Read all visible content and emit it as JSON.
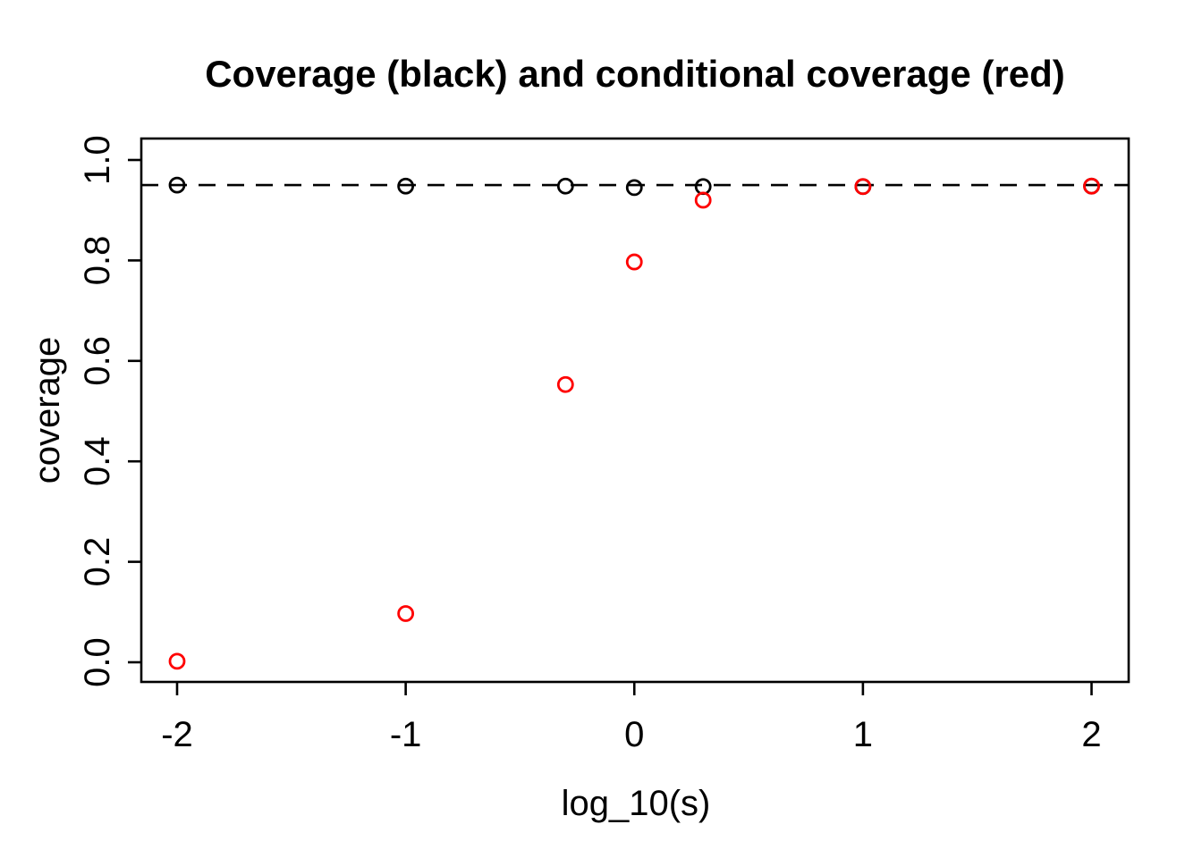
{
  "figure": {
    "background": "#FFFFFF",
    "axis_color": "#000000"
  },
  "chart_data": {
    "type": "scatter",
    "title": "Coverage (black) and conditional coverage (red)",
    "xlabel": "log_10(s)",
    "ylabel": "coverage",
    "xlim": [
      -2.16,
      2.16
    ],
    "ylim": [
      -0.04,
      1.04
    ],
    "x_ticks": [
      -2,
      -1,
      0,
      1,
      2
    ],
    "x_tick_labels": [
      "-2",
      "-1",
      "0",
      "1",
      "2"
    ],
    "y_ticks": [
      0,
      0.2,
      0.4,
      0.6,
      0.8,
      1.0
    ],
    "y_tick_labels": [
      "0.0",
      "0.2",
      "0.4",
      "0.6",
      "0.8",
      "1.0"
    ],
    "grid": false,
    "legend_position": "none",
    "reference_line": {
      "y": 0.95,
      "style": "dashed",
      "color": "#000000"
    },
    "series": [
      {
        "name": "coverage (black)",
        "color": "#000000",
        "marker": "open-circle",
        "x": [
          -2,
          -1,
          -0.301,
          0,
          0.301,
          1,
          2
        ],
        "y": [
          0.95,
          0.948,
          0.948,
          0.945,
          0.947,
          0.947,
          0.948
        ]
      },
      {
        "name": "conditional coverage (red)",
        "color": "#FF0000",
        "marker": "open-circle",
        "x": [
          -2,
          -1,
          -0.301,
          0,
          0.301,
          1,
          2
        ],
        "y": [
          0.002,
          0.097,
          0.553,
          0.797,
          0.92,
          0.947,
          0.948
        ]
      }
    ]
  }
}
